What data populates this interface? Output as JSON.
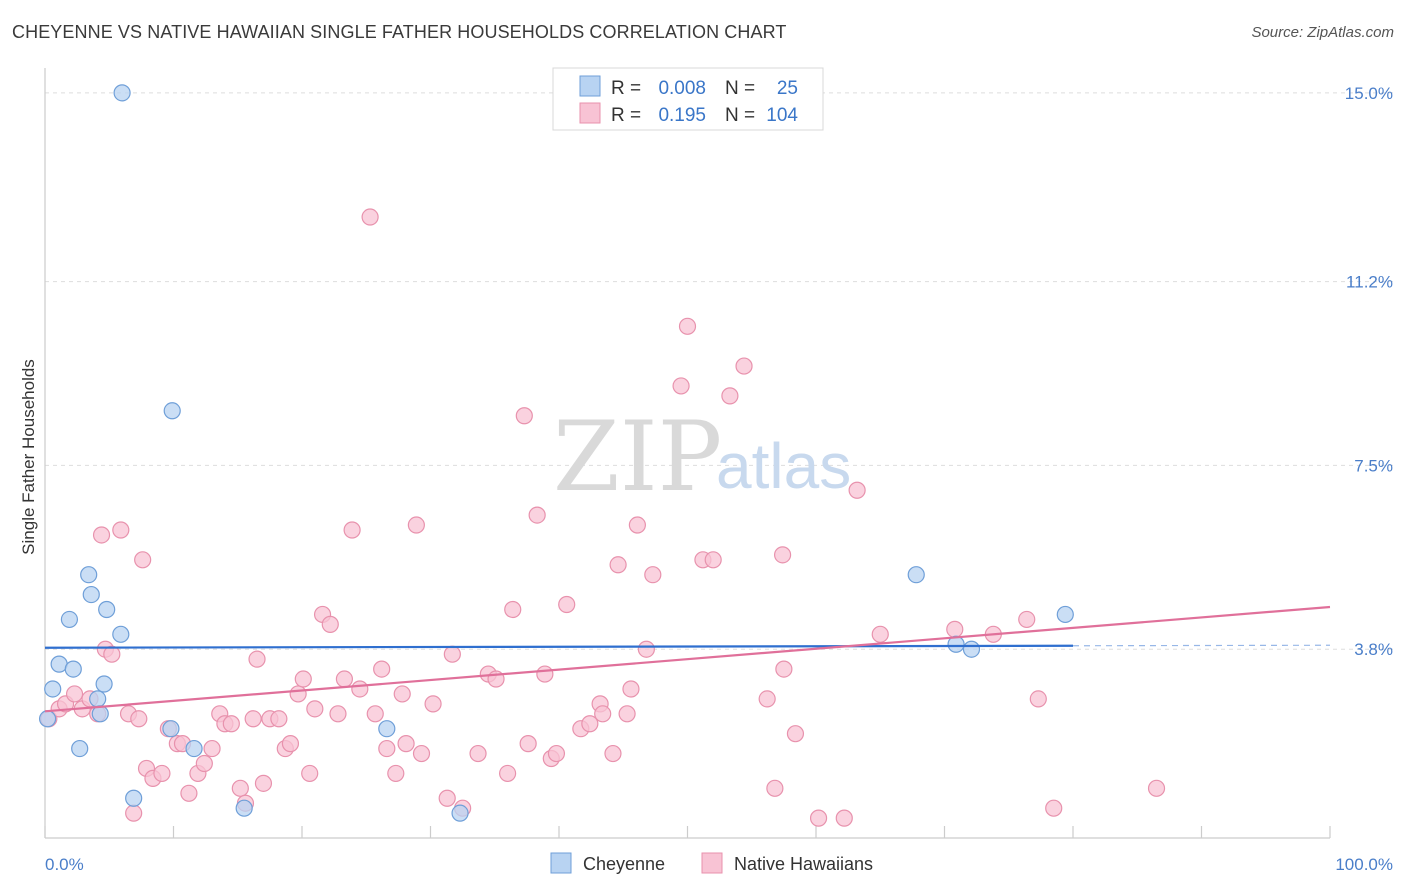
{
  "title": "CHEYENNE VS NATIVE HAWAIIAN SINGLE FATHER HOUSEHOLDS CORRELATION CHART",
  "source": "Source: ZipAtlas.com",
  "watermark": {
    "zip": "ZIP",
    "atlas": "atlas"
  },
  "legend": {
    "rows": [
      {
        "r_label": "R =",
        "r_value": "0.008",
        "n_label": "N =",
        "n_value": "25"
      },
      {
        "r_label": "R =",
        "r_value": "0.195",
        "n_label": "N =",
        "n_value": "104"
      }
    ]
  },
  "bottom_legend": [
    "Cheyenne",
    "Native Hawaiians"
  ],
  "colors": {
    "cheyenne_fill": "#b8d3f2",
    "cheyenne_stroke": "#6f9fd8",
    "cheyenne_line": "#2f6fcf",
    "hawaiian_fill": "#f8c3d4",
    "hawaiian_stroke": "#e892ad",
    "hawaiian_line": "#e0709a",
    "tick": "#4a7ec9",
    "grid": "#dddddd"
  },
  "chart_data": {
    "type": "scatter",
    "title": "CHEYENNE VS NATIVE HAWAIIAN SINGLE FATHER HOUSEHOLDS CORRELATION CHART",
    "xlabel": "",
    "ylabel": "Single Father Households",
    "xlim": [
      0,
      100
    ],
    "ylim": [
      0,
      15.5
    ],
    "x_tick_labels": [
      "0.0%",
      "100.0%"
    ],
    "y_ticks": [
      3.8,
      7.5,
      11.2,
      15.0
    ],
    "y_tick_labels": [
      "3.8%",
      "7.5%",
      "11.2%",
      "15.0%"
    ],
    "grid": true,
    "legend_position": "top-center",
    "series": [
      {
        "name": "Cheyenne",
        "R": 0.008,
        "N": 25,
        "trend": {
          "x": [
            0,
            80
          ],
          "y": [
            3.83,
            3.87
          ],
          "dashed_to": 100
        },
        "points": [
          [
            0.2,
            2.4
          ],
          [
            0.6,
            3.0
          ],
          [
            1.1,
            3.5
          ],
          [
            1.9,
            4.4
          ],
          [
            2.2,
            3.4
          ],
          [
            2.7,
            1.8
          ],
          [
            3.4,
            5.3
          ],
          [
            3.6,
            4.9
          ],
          [
            4.1,
            2.8
          ],
          [
            4.3,
            2.5
          ],
          [
            4.6,
            3.1
          ],
          [
            4.8,
            4.6
          ],
          [
            5.9,
            4.1
          ],
          [
            6.0,
            15.0
          ],
          [
            6.9,
            0.8
          ],
          [
            9.8,
            2.2
          ],
          [
            9.9,
            8.6
          ],
          [
            11.6,
            1.8
          ],
          [
            15.5,
            0.6
          ],
          [
            26.6,
            2.2
          ],
          [
            32.3,
            0.5
          ],
          [
            70.9,
            3.9
          ],
          [
            72.1,
            3.8
          ],
          [
            67.8,
            5.3
          ],
          [
            79.4,
            4.5
          ]
        ]
      },
      {
        "name": "Native Hawaiians",
        "R": 0.195,
        "N": 104,
        "trend": {
          "x": [
            0,
            100
          ],
          "y": [
            2.55,
            4.65
          ]
        },
        "points": [
          [
            0.3,
            2.4
          ],
          [
            1.1,
            2.6
          ],
          [
            1.6,
            2.7
          ],
          [
            2.3,
            2.9
          ],
          [
            2.9,
            2.6
          ],
          [
            3.5,
            2.8
          ],
          [
            4.1,
            2.5
          ],
          [
            4.4,
            6.1
          ],
          [
            4.7,
            3.8
          ],
          [
            5.2,
            3.7
          ],
          [
            5.9,
            6.2
          ],
          [
            6.5,
            2.5
          ],
          [
            6.9,
            0.5
          ],
          [
            7.3,
            2.4
          ],
          [
            7.9,
            1.4
          ],
          [
            8.4,
            1.2
          ],
          [
            9.1,
            1.3
          ],
          [
            9.6,
            2.2
          ],
          [
            10.3,
            1.9
          ],
          [
            10.7,
            1.9
          ],
          [
            11.2,
            0.9
          ],
          [
            11.9,
            1.3
          ],
          [
            12.4,
            1.5
          ],
          [
            13.0,
            1.8
          ],
          [
            13.6,
            2.5
          ],
          [
            14.0,
            2.3
          ],
          [
            14.5,
            2.3
          ],
          [
            15.2,
            1.0
          ],
          [
            15.6,
            0.7
          ],
          [
            16.2,
            2.4
          ],
          [
            16.5,
            3.6
          ],
          [
            17.0,
            1.1
          ],
          [
            17.5,
            2.4
          ],
          [
            18.2,
            2.4
          ],
          [
            18.7,
            1.8
          ],
          [
            19.1,
            1.9
          ],
          [
            19.7,
            2.9
          ],
          [
            20.1,
            3.2
          ],
          [
            20.6,
            1.3
          ],
          [
            21.0,
            2.6
          ],
          [
            21.6,
            4.5
          ],
          [
            22.2,
            4.3
          ],
          [
            22.8,
            2.5
          ],
          [
            23.3,
            3.2
          ],
          [
            23.9,
            6.2
          ],
          [
            24.5,
            3.0
          ],
          [
            25.3,
            12.5
          ],
          [
            25.7,
            2.5
          ],
          [
            26.2,
            3.4
          ],
          [
            26.6,
            1.8
          ],
          [
            27.3,
            1.3
          ],
          [
            27.8,
            2.9
          ],
          [
            28.1,
            1.9
          ],
          [
            28.9,
            6.3
          ],
          [
            29.3,
            1.7
          ],
          [
            30.2,
            2.7
          ],
          [
            31.3,
            0.8
          ],
          [
            31.7,
            3.7
          ],
          [
            32.5,
            0.6
          ],
          [
            33.7,
            1.7
          ],
          [
            34.5,
            3.3
          ],
          [
            35.1,
            3.2
          ],
          [
            36.0,
            1.3
          ],
          [
            36.4,
            4.6
          ],
          [
            37.3,
            8.5
          ],
          [
            37.6,
            1.9
          ],
          [
            38.3,
            6.5
          ],
          [
            38.9,
            3.3
          ],
          [
            39.4,
            1.6
          ],
          [
            39.8,
            1.7
          ],
          [
            40.6,
            4.7
          ],
          [
            41.7,
            2.2
          ],
          [
            42.4,
            2.3
          ],
          [
            43.2,
            2.7
          ],
          [
            43.4,
            2.5
          ],
          [
            44.2,
            1.7
          ],
          [
            44.6,
            5.5
          ],
          [
            45.3,
            2.5
          ],
          [
            45.6,
            3.0
          ],
          [
            46.1,
            6.3
          ],
          [
            46.8,
            3.8
          ],
          [
            47.3,
            5.3
          ],
          [
            49.5,
            9.1
          ],
          [
            50.0,
            10.3
          ],
          [
            51.2,
            5.6
          ],
          [
            53.3,
            8.9
          ],
          [
            54.4,
            9.5
          ],
          [
            56.2,
            2.8
          ],
          [
            56.8,
            1.0
          ],
          [
            57.5,
            3.4
          ],
          [
            58.4,
            2.1
          ],
          [
            60.2,
            0.4
          ],
          [
            62.2,
            0.4
          ],
          [
            63.2,
            7.0
          ],
          [
            70.8,
            4.2
          ],
          [
            73.8,
            4.1
          ],
          [
            76.4,
            4.4
          ],
          [
            77.3,
            2.8
          ],
          [
            78.5,
            0.6
          ],
          [
            86.5,
            1.0
          ],
          [
            7.6,
            5.6
          ],
          [
            57.4,
            5.7
          ],
          [
            52.0,
            5.6
          ],
          [
            65.0,
            4.1
          ]
        ]
      }
    ]
  }
}
